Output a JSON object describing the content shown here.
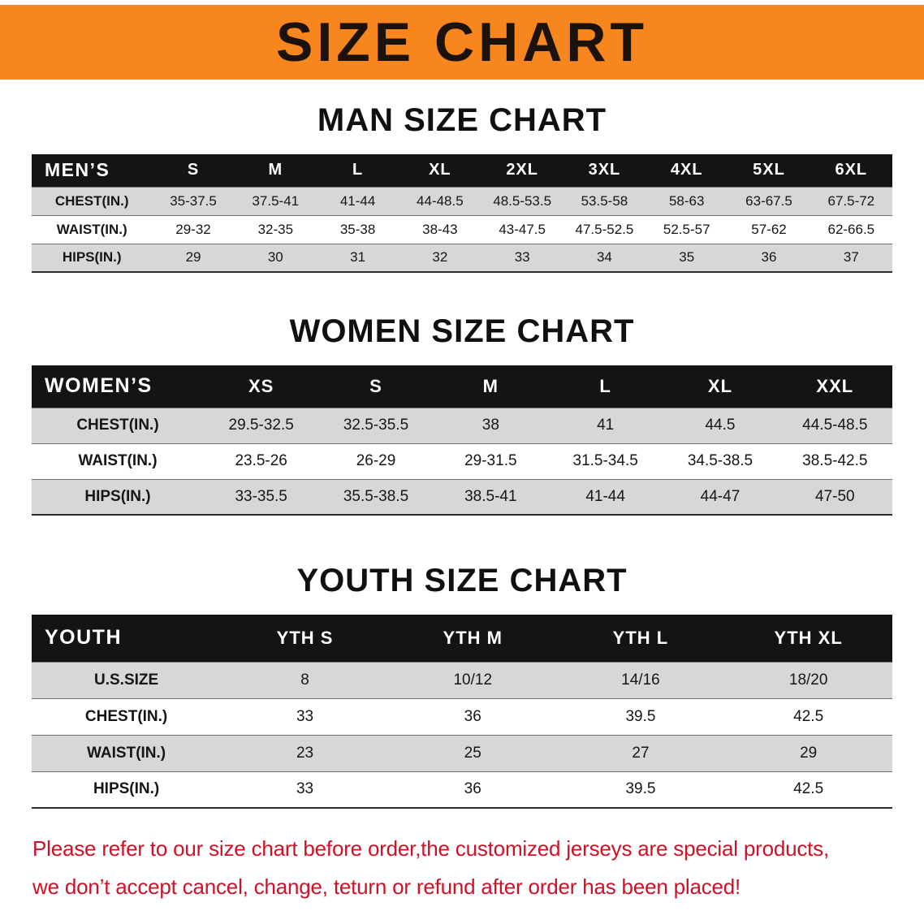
{
  "banner": {
    "title": "SIZE CHART",
    "bg_color": "#F6861D"
  },
  "sections": [
    {
      "id": "men",
      "heading": "MAN SIZE CHART",
      "table": {
        "header": [
          "MEN’S",
          "S",
          "M",
          "L",
          "XL",
          "2XL",
          "3XL",
          "4XL",
          "5XL",
          "6XL"
        ],
        "rows": [
          [
            "CHEST(IN.)",
            "35-37.5",
            "37.5-41",
            "41-44",
            "44-48.5",
            "48.5-53.5",
            "53.5-58",
            "58-63",
            "63-67.5",
            "67.5-72"
          ],
          [
            "WAIST(IN.)",
            "29-32",
            "32-35",
            "35-38",
            "38-43",
            "43-47.5",
            "47.5-52.5",
            "52.5-57",
            "57-62",
            "62-66.5"
          ],
          [
            "HIPS(IN.)",
            "29",
            "30",
            "31",
            "32",
            "33",
            "34",
            "35",
            "36",
            "37"
          ]
        ]
      }
    },
    {
      "id": "women",
      "heading": "WOMEN SIZE CHART",
      "table": {
        "header": [
          "WOMEN’S",
          "XS",
          "S",
          "M",
          "L",
          "XL",
          "XXL"
        ],
        "rows": [
          [
            "CHEST(IN.)",
            "29.5-32.5",
            "32.5-35.5",
            "38",
            "41",
            "44.5",
            "44.5-48.5"
          ],
          [
            "WAIST(IN.)",
            "23.5-26",
            "26-29",
            "29-31.5",
            "31.5-34.5",
            "34.5-38.5",
            "38.5-42.5"
          ],
          [
            "HIPS(IN.)",
            "33-35.5",
            "35.5-38.5",
            "38.5-41",
            "41-44",
            "44-47",
            "47-50"
          ]
        ]
      }
    },
    {
      "id": "youth",
      "heading": "YOUTH SIZE CHART",
      "table": {
        "header": [
          "YOUTH",
          "YTH S",
          "YTH M",
          "YTH L",
          "YTH XL"
        ],
        "rows": [
          [
            "U.S.SIZE",
            "8",
            "10/12",
            "14/16",
            "18/20"
          ],
          [
            "CHEST(IN.)",
            "33",
            "36",
            "39.5",
            "42.5"
          ],
          [
            "WAIST(IN.)",
            "23",
            "25",
            "27",
            "29"
          ],
          [
            "HIPS(IN.)",
            "33",
            "36",
            "39.5",
            "42.5"
          ]
        ]
      }
    }
  ],
  "disclaimer": {
    "color": "#CE1126",
    "line1": "Please refer to our size chart before order,the customized jerseys are special products,",
    "line2": "we don’t accept cancel, change, teturn or refund after order has been placed!"
  }
}
